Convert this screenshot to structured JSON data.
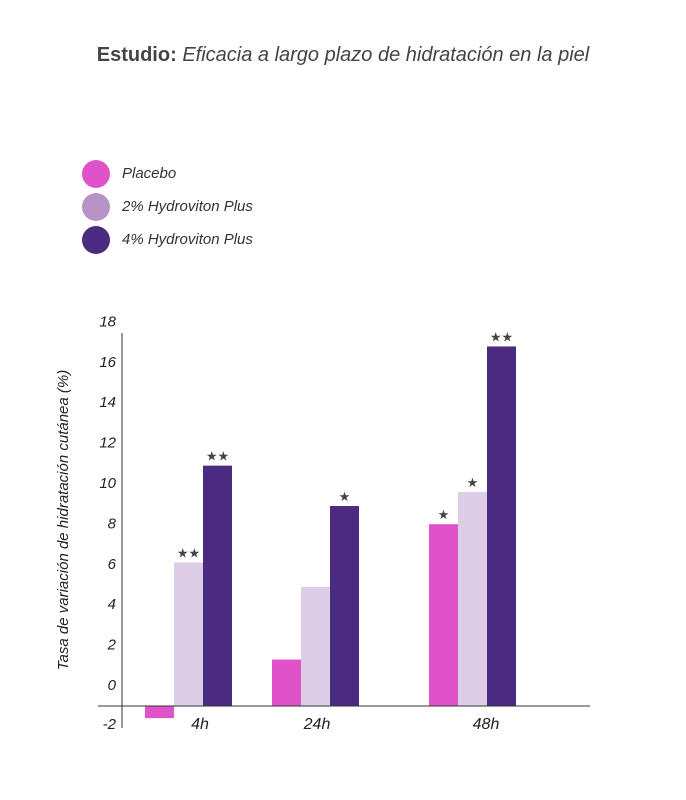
{
  "chart_data": {
    "type": "bar",
    "title_lead": "Estudio:",
    "title_rest": "Eficacia a largo plazo de hidratación en la piel",
    "ylabel": "Tasa de variación de hidratación cutánea (%)",
    "xlabel": "",
    "ylim": [
      -2,
      19
    ],
    "yticks": [
      -2,
      0,
      2,
      4,
      6,
      8,
      10,
      12,
      14,
      16,
      18
    ],
    "categories": [
      "4h",
      "24h",
      "48h"
    ],
    "series": [
      {
        "name": "Placebo",
        "color": "#e052c9",
        "values": [
          -0.6,
          2.3,
          9.0
        ],
        "sig": [
          "",
          "",
          "★"
        ]
      },
      {
        "name": "2% Hydroviton Plus",
        "color": "#decde6",
        "legend_color": "#b893c6",
        "values": [
          7.1,
          5.9,
          10.6
        ],
        "sig": [
          "★★",
          "",
          "★"
        ]
      },
      {
        "name": "4% Hydroviton Plus",
        "color": "#4b2b7f",
        "values": [
          11.9,
          9.9,
          17.8
        ],
        "sig": [
          "★★",
          "★",
          "★★"
        ]
      }
    ],
    "legend_position": "top-left",
    "grid": false
  }
}
